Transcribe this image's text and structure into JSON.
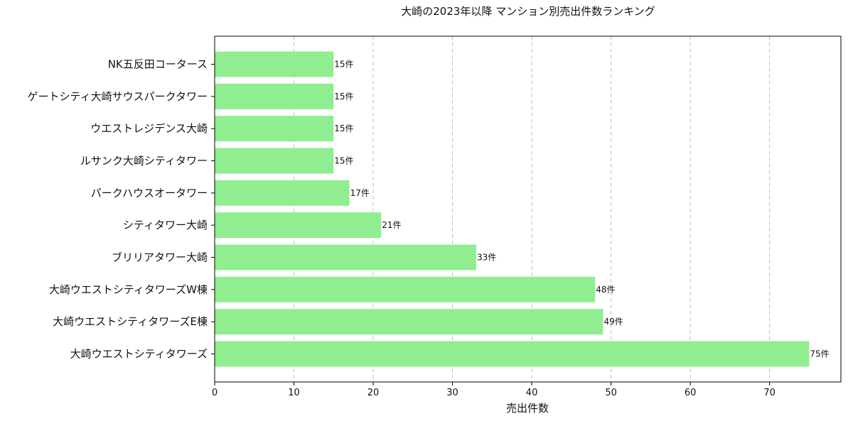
{
  "chart_data": {
    "type": "bar",
    "orientation": "horizontal",
    "title": "大崎の2023年以降 マンション別売出件数ランキング",
    "xlabel": "売出件数",
    "ylabel": "",
    "xlim": [
      0,
      79
    ],
    "xticks": [
      0,
      10,
      20,
      30,
      40,
      50,
      60,
      70
    ],
    "grid": "x-dashed",
    "bar_color": "#90EE90",
    "label_suffix": "件",
    "categories": [
      "NK五反田コータース",
      "ゲートシティ大崎サウスパークタワー",
      "ウエストレジデンス大崎",
      "ルサンク大崎シティタワー",
      "パークハウスオータワー",
      "シティタワー大崎",
      "ブリリアタワー大崎",
      "大崎ウエストシティタワーズW棟",
      "大崎ウエストシティタワーズE棟",
      "大崎ウエストシティタワーズ"
    ],
    "values": [
      15,
      15,
      15,
      15,
      17,
      21,
      33,
      48,
      49,
      75
    ],
    "data_labels": [
      "15件",
      "15件",
      "15件",
      "15件",
      "17件",
      "21件",
      "33件",
      "48件",
      "49件",
      "75件"
    ]
  }
}
